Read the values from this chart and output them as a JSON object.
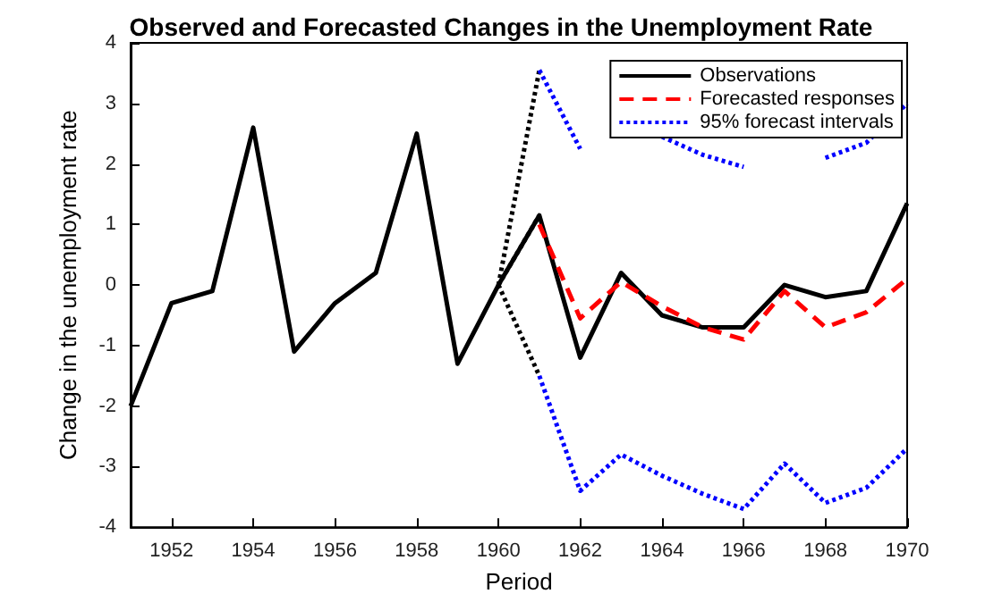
{
  "chart_data": {
    "type": "line",
    "title": "Observed and Forecasted Changes in the Unemployment Rate",
    "xlabel": "Period",
    "ylabel": "Change in the unemployment rate",
    "xlim": [
      1951,
      1970
    ],
    "xticks": [
      1952,
      1954,
      1956,
      1958,
      1960,
      1962,
      1964,
      1966,
      1968,
      1970
    ],
    "ylim": [
      -4,
      4
    ],
    "yticks": [
      -4,
      -3,
      -2,
      -1,
      0,
      1,
      2,
      3,
      4
    ],
    "grid": false,
    "legend": "top right",
    "marker": "none",
    "series": [
      {
        "name": "Observations",
        "color": "#000000",
        "line_style": "solid",
        "x": [
          1951,
          1952,
          1953,
          1954,
          1955,
          1956,
          1957,
          1958,
          1959,
          1960,
          1961,
          1962,
          1963,
          1964,
          1965,
          1966,
          1967,
          1968,
          1969,
          1970
        ],
        "values": [
          -2,
          -0.3,
          -0.1,
          2.6,
          -1.1,
          -0.3,
          0.2,
          2.5,
          -1.3,
          0,
          1.15,
          -1.2,
          0.2,
          -0.5,
          -0.7,
          -0.7,
          0,
          -0.2,
          -0.1,
          1.35
        ]
      },
      {
        "name": "Forecasted responses",
        "color": "#ff0000",
        "line_style": "dashed",
        "x": [
          1961,
          1962,
          1963,
          1964,
          1965,
          1966,
          1967,
          1968,
          1969,
          1970
        ],
        "values": [
          1,
          -0.55,
          0.05,
          -0.35,
          -0.7,
          -0.9,
          -0.1,
          -0.7,
          -0.45,
          0.1
        ]
      },
      {
        "name": "95% forecast intervals",
        "color": "#0000ff",
        "line_style": "dotted",
        "x": [
          1961,
          1962,
          1963,
          1964,
          1965,
          1966,
          1967,
          1968,
          1969,
          1970
        ],
        "values": [
          3.55,
          2.25,
          null,
          2.45,
          2.15,
          1.95,
          null,
          2.1,
          2.35,
          3
        ]
      },
      {
        "color": "#0000ff",
        "line_style": "dotted",
        "x": [
          1961,
          1962,
          1963,
          1964,
          1965,
          1966,
          1967,
          1968,
          1969,
          1970
        ],
        "values": [
          -1.5,
          -3.4,
          -2.8,
          -3.15,
          -3.45,
          -3.7,
          -2.95,
          -3.6,
          -3.35,
          -2.7
        ]
      },
      {
        "color": "#000000",
        "line_style": "dotted",
        "x": [
          1960,
          1961
        ],
        "values": [
          0,
          1.15
        ]
      },
      {
        "color": "#000000",
        "line_style": "dotted",
        "x": [
          1960,
          1961
        ],
        "values": [
          0,
          3.55
        ]
      },
      {
        "color": "#000000",
        "line_style": "dotted",
        "x": [
          1960,
          1961
        ],
        "values": [
          0,
          -1.5
        ]
      }
    ]
  }
}
